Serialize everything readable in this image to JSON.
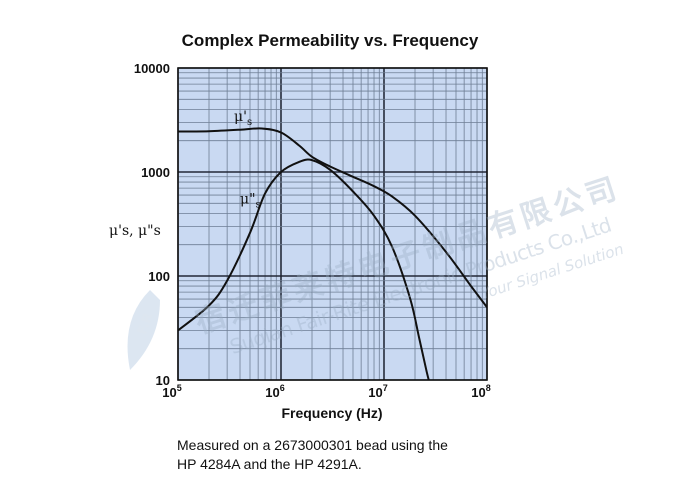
{
  "chart_data": {
    "type": "line",
    "title": "Complex Permeability vs. Frequency",
    "xlabel": "Frequency (Hz)",
    "ylabel": "μ's, μ\"s",
    "x_scale": "log",
    "y_scale": "log",
    "xlim": [
      100000,
      100000000
    ],
    "ylim": [
      10,
      10000
    ],
    "grid": true,
    "x_ticks": [
      {
        "value": 100000,
        "base": "10",
        "exp": "5"
      },
      {
        "value": 1000000,
        "base": "10",
        "exp": "6"
      },
      {
        "value": 10000000,
        "base": "10",
        "exp": "7"
      },
      {
        "value": 100000000,
        "base": "10",
        "exp": "8"
      }
    ],
    "y_ticks": [
      {
        "value": 10,
        "label": "10"
      },
      {
        "value": 100,
        "label": "100"
      },
      {
        "value": 1000,
        "label": "1000"
      },
      {
        "value": 10000,
        "label": "10000"
      }
    ],
    "series": [
      {
        "name": "μ's",
        "label_main": "μ'",
        "label_sub": "s",
        "label_at": [
          350000,
          3100
        ],
        "x": [
          100000,
          200000,
          400000,
          650000,
          1000000,
          1500000,
          2000000,
          3000000,
          5000000,
          8000000,
          12000000,
          20000000,
          40000000,
          70000000,
          100000000
        ],
        "y": [
          2450,
          2470,
          2550,
          2620,
          2400,
          1800,
          1400,
          1130,
          900,
          730,
          580,
          380,
          170,
          80,
          50
        ]
      },
      {
        "name": "μ\"s",
        "label_main": "μ\"",
        "label_sub": "s",
        "label_at": [
          400000,
          500
        ],
        "x": [
          100000,
          200000,
          300000,
          500000,
          700000,
          1000000,
          1500000,
          2000000,
          3000000,
          5000000,
          8000000,
          12000000,
          18000000,
          22000000,
          26000000,
          28000000
        ],
        "y": [
          30,
          52,
          90,
          260,
          620,
          1000,
          1250,
          1300,
          1050,
          650,
          380,
          190,
          60,
          25,
          12,
          9
        ]
      }
    ]
  },
  "caption": {
    "line1": "Measured on a 2673000301 bead using the",
    "line2": "HP 4284A and the HP 4291A."
  },
  "watermark": {
    "cn": "宿迁菲莱特电子制品有限公司",
    "en": "Suqian Fair-Rite Electronic Products Co.,Ltd",
    "slogan": "Your Signal Solution",
    "badge": "F.R"
  },
  "colors": {
    "plot_bg": "#c9d9f2",
    "grid_minor": "#6e7e94",
    "grid_major": "#1c2230",
    "line": "#111111"
  }
}
